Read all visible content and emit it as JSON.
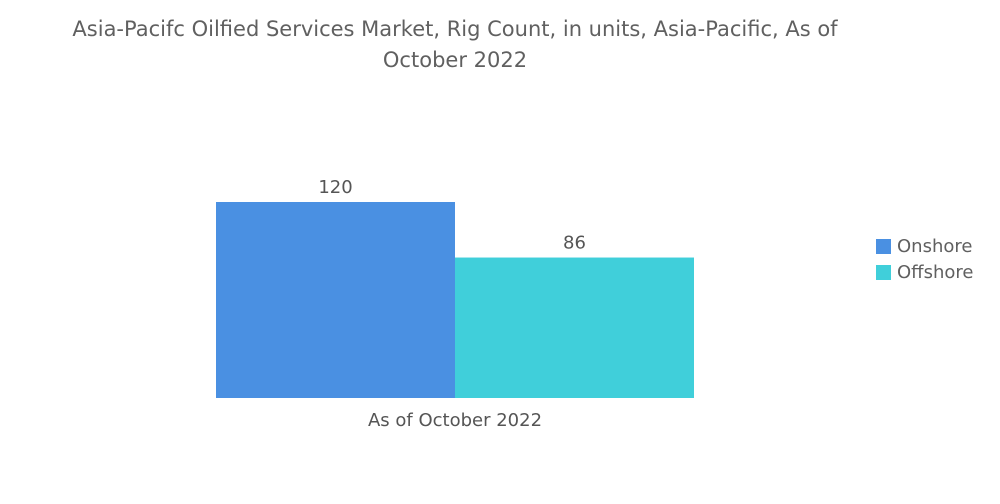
{
  "chart_data": {
    "type": "bar",
    "title": "Asia-Pacifc Oilfied Services Market, Rig Count, in units, Asia-Pacific, As of October 2022",
    "categories": [
      "As of October 2022"
    ],
    "series": [
      {
        "name": "Onshore",
        "values": [
          120
        ],
        "color": "#4a90e2"
      },
      {
        "name": "Offshore",
        "values": [
          86
        ],
        "color": "#40cfda"
      }
    ],
    "xlabel": "",
    "ylabel": "",
    "ylim": [
      0,
      120
    ],
    "grid": false,
    "legend_position": "right"
  }
}
